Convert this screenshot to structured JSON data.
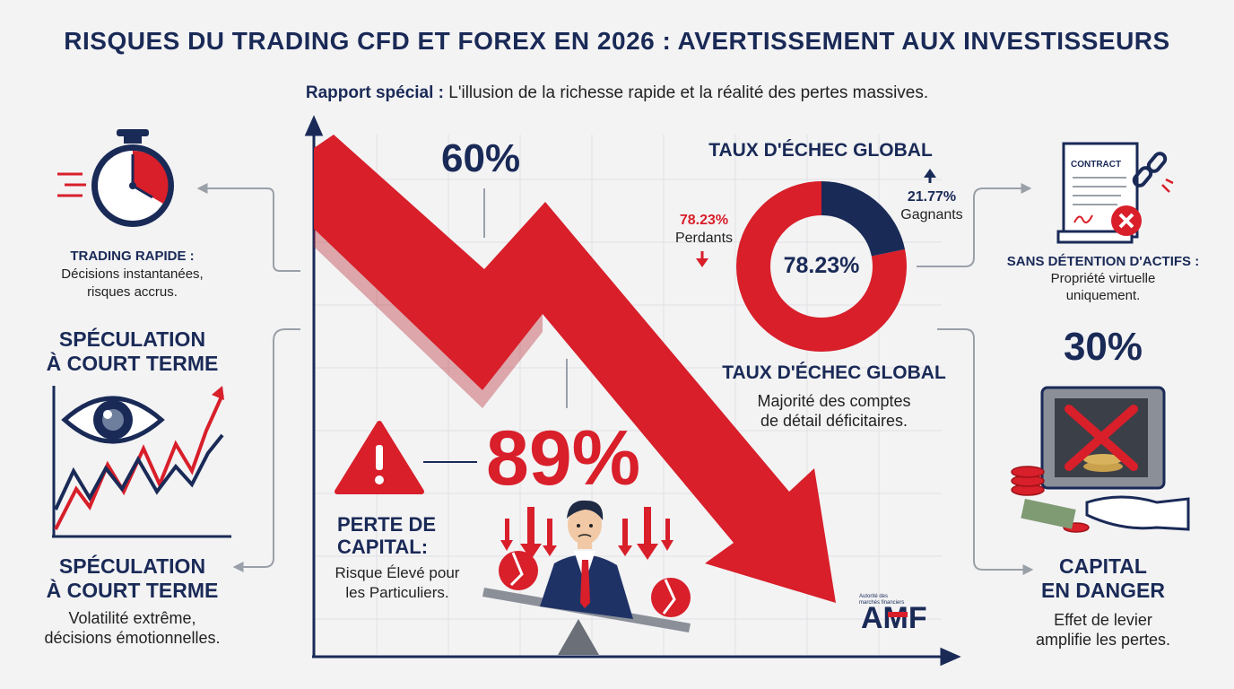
{
  "title": "RISQUES DU TRADING CFD ET FOREX EN 2026 : AVERTISSEMENT AUX INVESTISSEURS",
  "subtitle": {
    "prefix": "Rapport spécial :",
    "text": "L'illusion de la richesse rapide et la réalité des pertes massives."
  },
  "left": {
    "trading_rapide": {
      "title": "TRADING RAPIDE :",
      "line1": "Décisions instantanées,",
      "line2": "risques accrus."
    },
    "speculation_top": {
      "line1": "SPÉCULATION",
      "line2": "À COURT TERME"
    },
    "speculation_bottom": {
      "line1": "SPÉCULATION",
      "line2": "À COURT TERME",
      "desc1": "Volatilité extrême,",
      "desc2": "décisions émotionnelles."
    }
  },
  "center": {
    "stat_60": "60%",
    "stat_89": "89%",
    "perte": {
      "title1": "PERTE DE",
      "title2": "CAPITAL:",
      "desc1": "Risque Élevé pour",
      "desc2": "les Particuliers."
    }
  },
  "donut": {
    "title": "TAUX D'ÉCHEC GLOBAL",
    "center_label": "78.23%",
    "losers": {
      "value": "78.23%",
      "label": "Perdants"
    },
    "winners": {
      "value": "21.77%",
      "label": "Gagnants"
    }
  },
  "echec": {
    "title": "TAUX D'ÉCHEC GLOBAL",
    "desc1": "Majorité des comptes",
    "desc2": "de détail déficitaires."
  },
  "amf": {
    "small1": "Autorité des",
    "small2": "marchés financiers",
    "logo": "AMF"
  },
  "right": {
    "contract_label": "CONTRACT",
    "sans_detention": {
      "title": "SANS DÉTENTION D'ACTIFS :",
      "desc1": "Propriété virtuelle",
      "desc2": "uniquement."
    },
    "stat_30": "30%",
    "capital": {
      "title1": "CAPITAL",
      "title2": "EN DANGER",
      "desc1": "Effet de levier",
      "desc2": "amplifie les pertes."
    }
  },
  "chart_data": {
    "type": "pie",
    "title": "TAUX D'ÉCHEC GLOBAL",
    "categories": [
      "Perdants",
      "Gagnants"
    ],
    "values": [
      78.23,
      21.77
    ]
  },
  "colors": {
    "red": "#d81f2a",
    "navy": "#1a2a57",
    "grey": "#9aa0a8",
    "bg": "#f3f3f4"
  }
}
